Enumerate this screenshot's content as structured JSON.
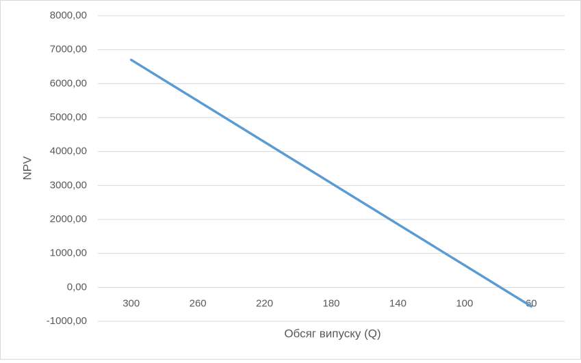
{
  "chart_data": {
    "type": "line",
    "x_label": "Обсяг випуску (Q)",
    "y_label": "NPV",
    "categories": [
      "300",
      "260",
      "220",
      "180",
      "140",
      "100",
      "60"
    ],
    "series": [
      {
        "name": "NPV",
        "color": "#5b9bd5",
        "values": [
          6700,
          5490,
          4280,
          3070,
          1860,
          650,
          -560
        ]
      }
    ],
    "ylim": [
      -1000,
      8000
    ],
    "yticks": [
      {
        "value": -1000,
        "label": "-1000,00"
      },
      {
        "value": 0,
        "label": "0,00"
      },
      {
        "value": 1000,
        "label": "1000,00"
      },
      {
        "value": 2000,
        "label": "2000,00"
      },
      {
        "value": 3000,
        "label": "3000,00"
      },
      {
        "value": 4000,
        "label": "4000,00"
      },
      {
        "value": 5000,
        "label": "5000,00"
      },
      {
        "value": 6000,
        "label": "6000,00"
      },
      {
        "value": 7000,
        "label": "7000,00"
      },
      {
        "value": 8000,
        "label": "8000,00"
      }
    ],
    "grid": true
  }
}
